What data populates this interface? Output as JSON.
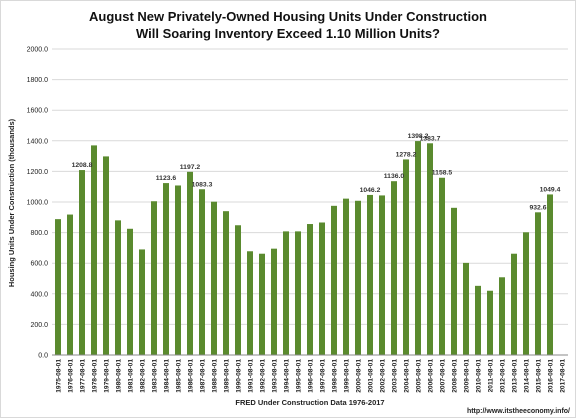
{
  "chart_data": {
    "type": "bar",
    "title": "August New Privately-Owned Housing Units Under Construction",
    "subtitle": "Will Soaring Inventory Exceed 1.10 Million Units?",
    "xlabel": "FRED Under Construction Data 1976-2017",
    "ylabel": "Housing Units Under Construction (thousands)",
    "source_url": "http://www.itstheeconomy.info/",
    "ylim": [
      0,
      2000
    ],
    "y_ticks": [
      "0.0",
      "200.0",
      "400.0",
      "600.0",
      "800.0",
      "1000.0",
      "1200.0",
      "1400.0",
      "1600.0",
      "1800.0",
      "2000.0"
    ],
    "grid": true,
    "color": "#5a8a2e",
    "categories": [
      "1975-08-01",
      "1976-08-01",
      "1977-08-01",
      "1978-08-01",
      "1979-08-01",
      "1980-08-01",
      "1981-08-01",
      "1982-08-01",
      "1983-08-01",
      "1984-08-01",
      "1985-08-01",
      "1986-08-01",
      "1987-08-01",
      "1988-08-01",
      "1989-08-01",
      "1990-08-01",
      "1991-08-01",
      "1992-08-01",
      "1993-08-01",
      "1994-08-01",
      "1995-08-01",
      "1996-08-01",
      "1997-08-01",
      "1998-08-01",
      "1999-08-01",
      "2000-08-01",
      "2001-08-01",
      "2002-08-01",
      "2003-08-01",
      "2004-08-01",
      "2005-08-01",
      "2006-08-01",
      "2007-08-01",
      "2008-08-01",
      "2009-08-01",
      "2010-08-01",
      "2011-08-01",
      "2012-08-01",
      "2013-08-01",
      "2014-08-01",
      "2015-08-01",
      "2016-08-01",
      "2017-08-01"
    ],
    "values": [
      888,
      918,
      1208.8,
      1370,
      1298,
      880,
      825,
      690,
      1005,
      1123.6,
      1108,
      1197.2,
      1083.3,
      1002,
      940,
      848,
      678,
      662,
      695,
      808,
      808,
      856,
      866,
      975,
      1022,
      1008,
      1046.2,
      1043,
      1136.0,
      1278.2,
      1398.2,
      1383.7,
      1158.5,
      962,
      602,
      452,
      420,
      508,
      662,
      802,
      932.6,
      1049.4,
      null
    ],
    "data_labels": [
      {
        "index": 2,
        "text": "1208.8"
      },
      {
        "index": 9,
        "text": "1123.6"
      },
      {
        "index": 11,
        "text": "1197.2"
      },
      {
        "index": 12,
        "text": "1083.3"
      },
      {
        "index": 26,
        "text": "1046.2"
      },
      {
        "index": 28,
        "text": "1136.0"
      },
      {
        "index": 29,
        "text": "1278.2"
      },
      {
        "index": 30,
        "text": "1398.2"
      },
      {
        "index": 31,
        "text": "1383.7"
      },
      {
        "index": 32,
        "text": "1158.5"
      },
      {
        "index": 40,
        "text": "932.6"
      },
      {
        "index": 41,
        "text": "1049.4"
      }
    ]
  }
}
